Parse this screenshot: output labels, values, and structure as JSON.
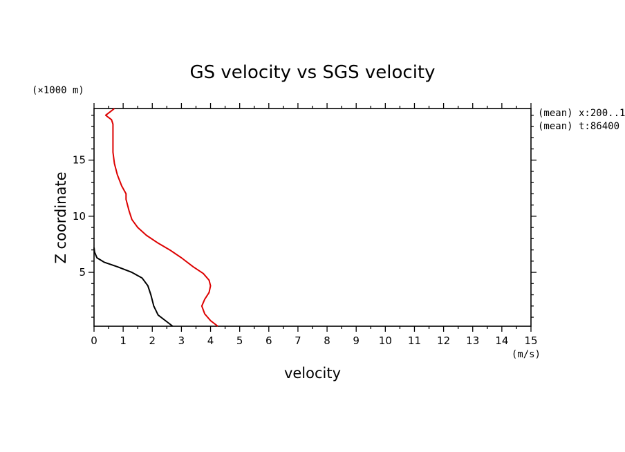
{
  "chart_data": {
    "type": "line",
    "title": "GS velocity vs SGS velocity",
    "xlabel": "velocity",
    "ylabel": "Z coordinate",
    "xunit": "(m/s)",
    "yunit": "(×1000 m)",
    "xlim": [
      0,
      15
    ],
    "ylim": [
      0.2,
      19.6
    ],
    "xticks": [
      0,
      1,
      2,
      3,
      4,
      5,
      6,
      7,
      8,
      9,
      10,
      11,
      12,
      13,
      14,
      15
    ],
    "yticks": [
      5,
      10,
      15
    ],
    "annotations": [
      "(mean) x:200..1",
      "(mean) t:86400"
    ],
    "grid": false,
    "series": [
      {
        "color": "#000000",
        "points": [
          [
            2.7,
            0.2
          ],
          [
            2.5,
            0.6
          ],
          [
            2.2,
            1.2
          ],
          [
            2.05,
            2.0
          ],
          [
            1.95,
            3.0
          ],
          [
            1.85,
            3.8
          ],
          [
            1.65,
            4.5
          ],
          [
            1.3,
            5.0
          ],
          [
            0.8,
            5.5
          ],
          [
            0.35,
            5.9
          ],
          [
            0.1,
            6.3
          ],
          [
            0.02,
            6.8
          ],
          [
            0.0,
            7.2
          ]
        ]
      },
      {
        "color": "#dd0000",
        "points": [
          [
            4.25,
            0.2
          ],
          [
            4.0,
            0.7
          ],
          [
            3.8,
            1.3
          ],
          [
            3.7,
            2.0
          ],
          [
            3.8,
            2.6
          ],
          [
            3.95,
            3.2
          ],
          [
            4.0,
            3.8
          ],
          [
            3.95,
            4.3
          ],
          [
            3.75,
            4.9
          ],
          [
            3.4,
            5.5
          ],
          [
            3.0,
            6.3
          ],
          [
            2.6,
            7.0
          ],
          [
            2.2,
            7.6
          ],
          [
            1.8,
            8.3
          ],
          [
            1.5,
            9.0
          ],
          [
            1.3,
            9.7
          ],
          [
            1.2,
            10.5
          ],
          [
            1.1,
            11.5
          ],
          [
            1.1,
            12.0
          ],
          [
            0.95,
            12.7
          ],
          [
            0.8,
            13.7
          ],
          [
            0.7,
            14.7
          ],
          [
            0.65,
            15.7
          ],
          [
            0.65,
            16.7
          ],
          [
            0.65,
            17.5
          ],
          [
            0.65,
            18.2
          ],
          [
            0.6,
            18.6
          ],
          [
            0.45,
            18.9
          ],
          [
            0.4,
            19.0
          ],
          [
            0.55,
            19.3
          ],
          [
            0.7,
            19.6
          ]
        ]
      }
    ]
  }
}
